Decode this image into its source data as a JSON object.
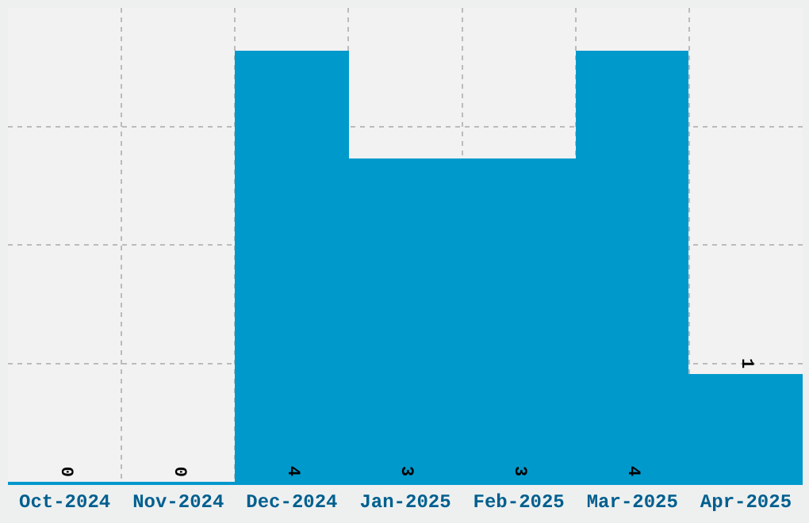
{
  "chart_data": {
    "type": "bar",
    "categories": [
      "Oct-2024",
      "Nov-2024",
      "Dec-2024",
      "Jan-2025",
      "Feb-2025",
      "Mar-2025",
      "Apr-2025"
    ],
    "values": [
      0,
      0,
      4,
      3,
      3,
      4,
      1
    ],
    "color": "#0099cc",
    "ylim": [
      0,
      4.4
    ],
    "yticks": [
      {
        "value": 1.1,
        "label": null
      },
      {
        "value": 2.2,
        "label": null
      },
      {
        "value": 3.3,
        "label": null
      }
    ],
    "tick_labels": "x",
    "grid": true,
    "data_labels": true,
    "legend": false
  }
}
